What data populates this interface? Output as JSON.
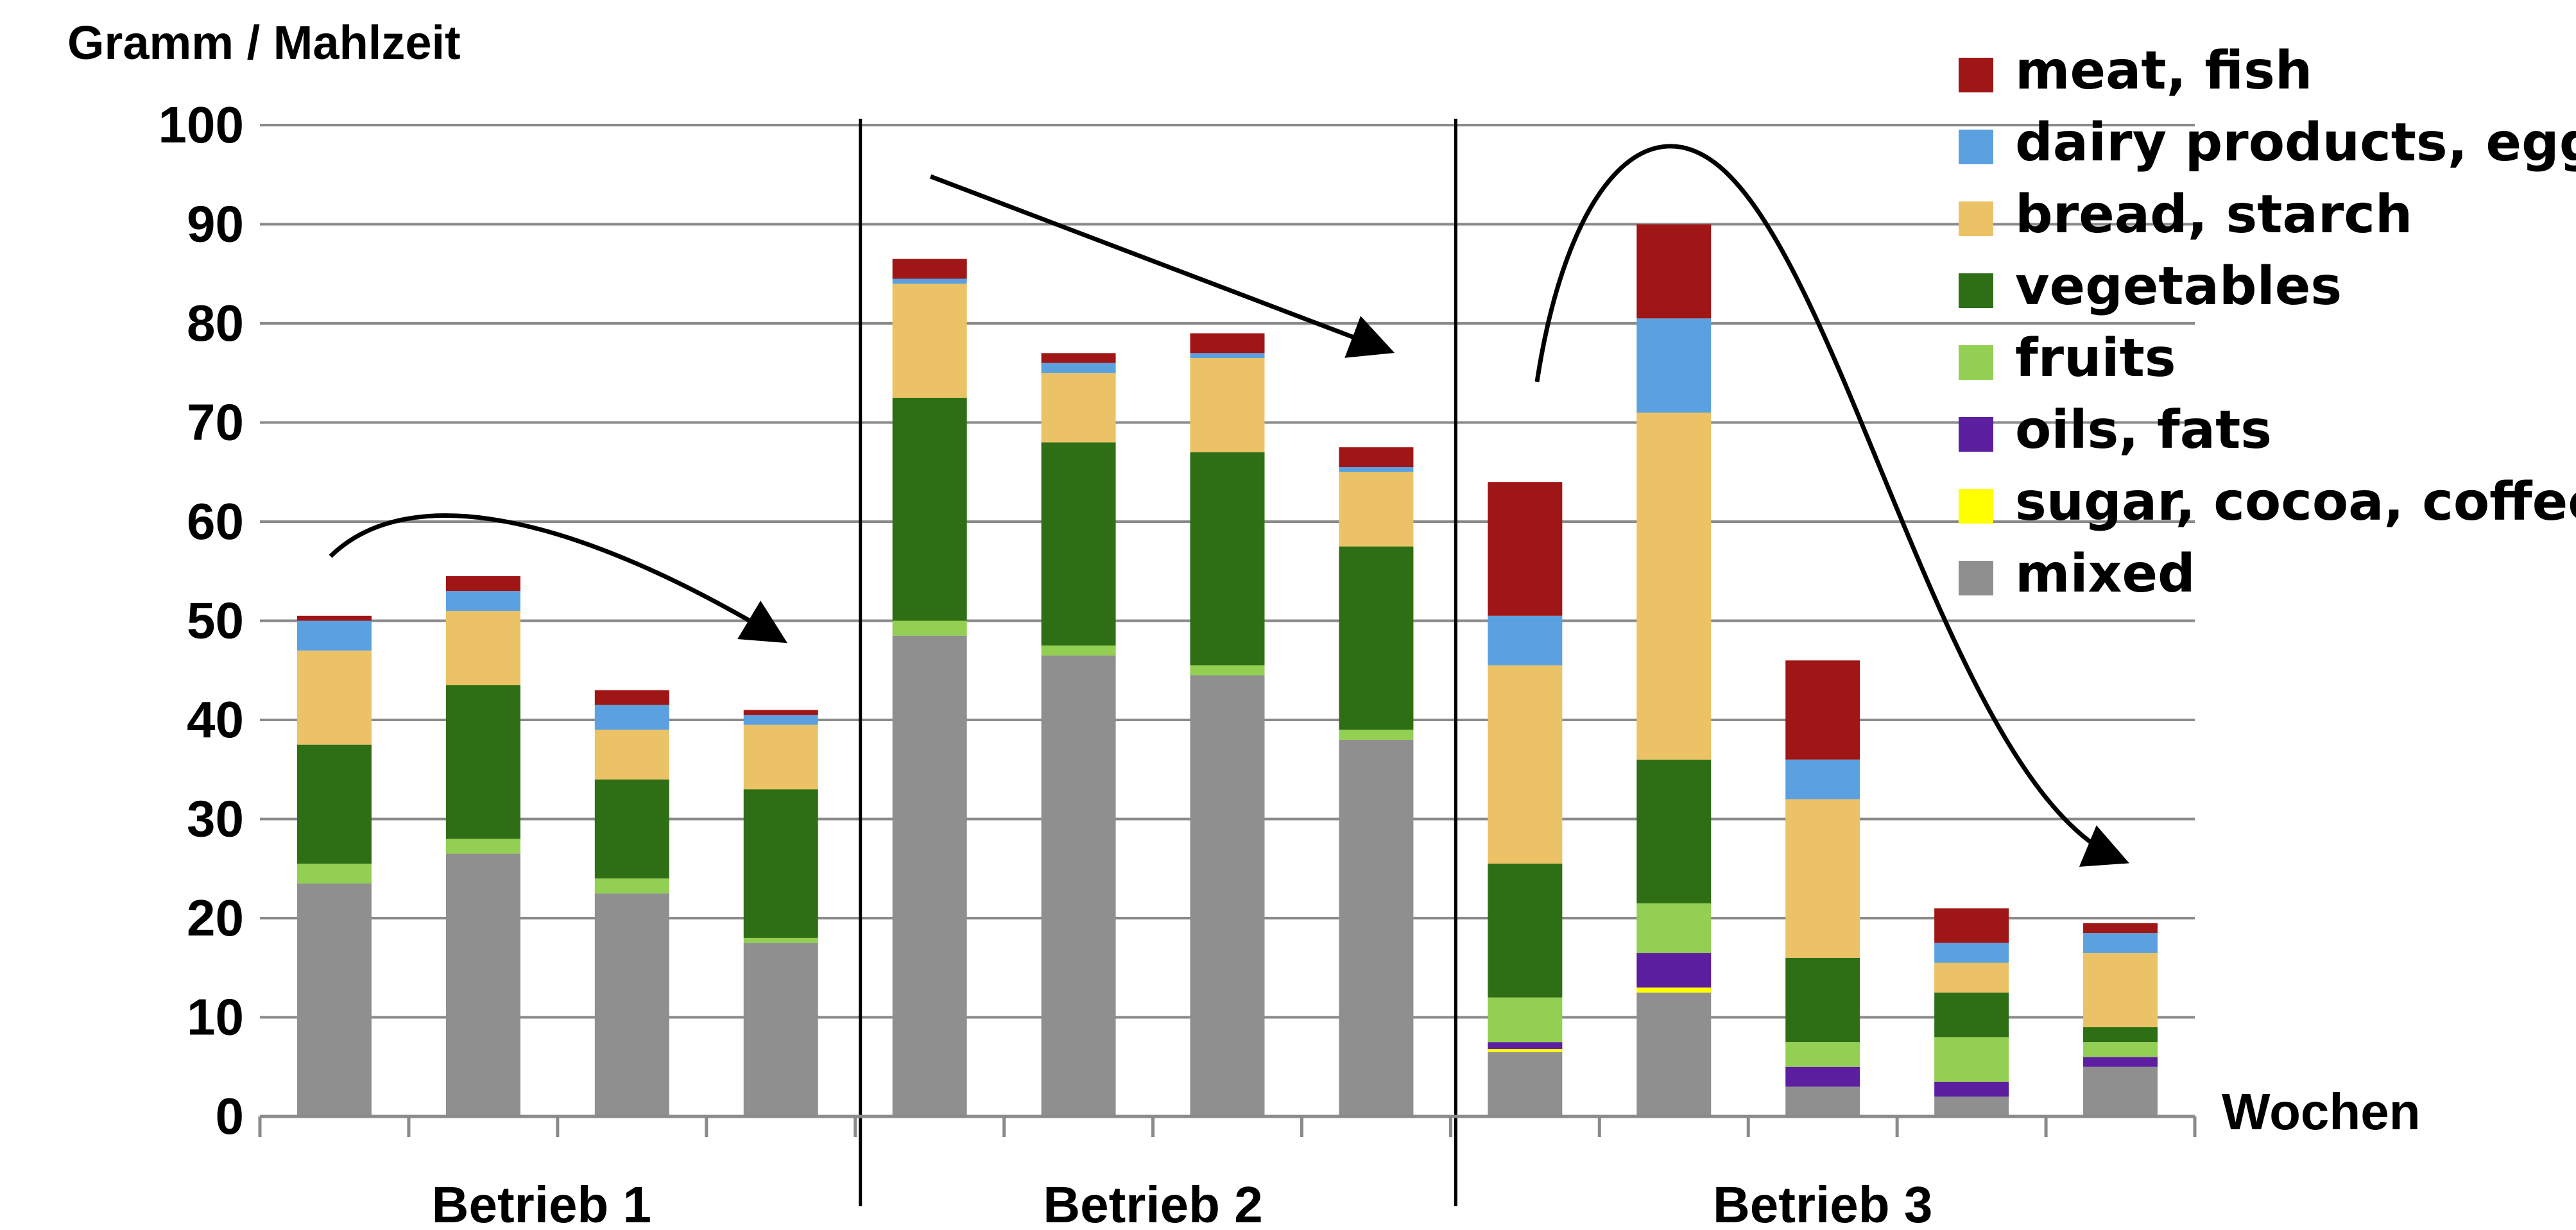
{
  "chart_data": {
    "type": "bar",
    "stacked": true,
    "ylabel": "Gramm / Mahlzeit",
    "xlabel": "Wochen",
    "ylim": [
      0,
      100
    ],
    "y_ticks": [
      "0",
      "10",
      "20",
      "30",
      "40",
      "50",
      "60",
      "70",
      "80",
      "90",
      "100"
    ],
    "grid": true,
    "legend_position": "top-right",
    "groups": [
      {
        "label": "Betrieb 1",
        "bar_count": 4
      },
      {
        "label": "Betrieb 2",
        "bar_count": 4
      },
      {
        "label": "Betrieb 3",
        "bar_count": 5
      }
    ],
    "series": [
      {
        "name": "mixed",
        "color": "#8f8f8f",
        "values": [
          23.5,
          26.5,
          22.5,
          17.5,
          48.5,
          46.5,
          44.5,
          38,
          6.5,
          12.5,
          3,
          2,
          5
        ]
      },
      {
        "name": "sugar, cocoa, coffee",
        "color": "#ffff00",
        "values": [
          0,
          0,
          0,
          0,
          0,
          0,
          0,
          0,
          0.3,
          0.5,
          0,
          0,
          0
        ]
      },
      {
        "name": "oils, fats",
        "color": "#5b1fa0",
        "values": [
          0,
          0,
          0,
          0,
          0,
          0,
          0,
          0,
          0.7,
          3.5,
          2,
          1.5,
          1
        ]
      },
      {
        "name": "fruits",
        "color": "#92cf52",
        "values": [
          2,
          1.5,
          1.5,
          0.5,
          1.5,
          1,
          1,
          1,
          4.5,
          5,
          2.5,
          4.5,
          1.5
        ]
      },
      {
        "name": "vegetables",
        "color": "#2e6f16",
        "values": [
          12,
          15.5,
          10,
          15,
          22.5,
          20.5,
          21.5,
          18.5,
          13.5,
          14.5,
          8.5,
          4.5,
          1.5
        ]
      },
      {
        "name": "bread, starch",
        "color": "#ebc265",
        "values": [
          9.5,
          7.5,
          5,
          6.5,
          11.5,
          7,
          9.5,
          7.5,
          20,
          35,
          16,
          3,
          7.5
        ]
      },
      {
        "name": "dairy products, eggs",
        "color": "#5ba1e0",
        "values": [
          3,
          2,
          2.5,
          1,
          0.5,
          1,
          0.5,
          0.5,
          5,
          9.5,
          4,
          2,
          2
        ]
      },
      {
        "name": "meat, fish",
        "color": "#a01515",
        "values": [
          0.5,
          1.5,
          1.5,
          0.5,
          2,
          1,
          2,
          2,
          13.5,
          9.5,
          10,
          3.5,
          1
        ]
      }
    ],
    "legend_order": [
      "meat, fish",
      "dairy products, eggs",
      "bread, starch",
      "vegetables",
      "fruits",
      "oils, fats",
      "sugar, cocoa, coffee",
      "mixed"
    ],
    "annotations": [
      "curved arrow over Betrieb 1 (rise then fall)",
      "arrow over Betrieb 2 (decreasing)",
      "curved arrow over Betrieb 3 (rise then fall)"
    ]
  }
}
